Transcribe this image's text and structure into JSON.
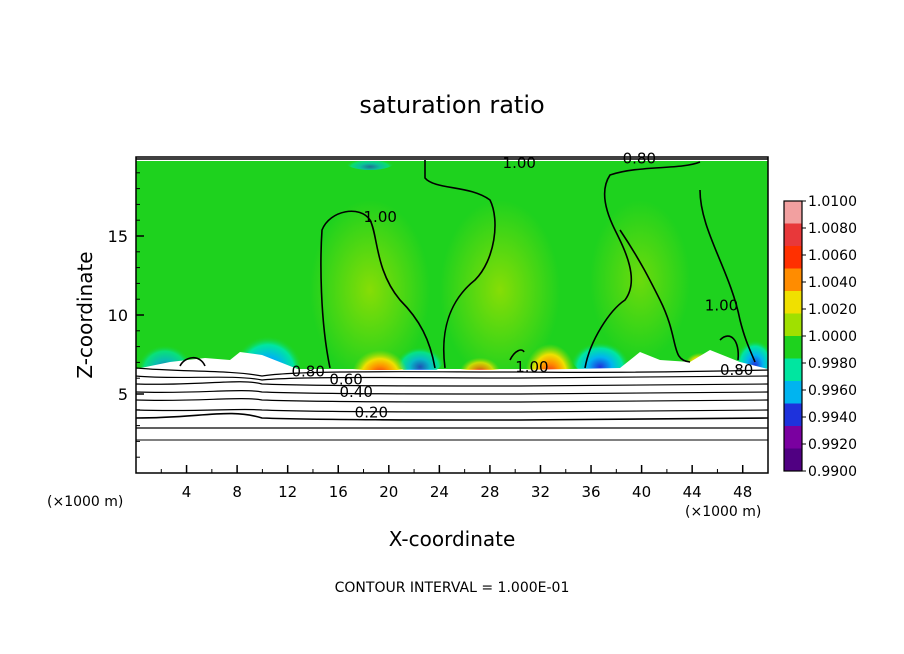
{
  "chart_data": {
    "type": "heatmap",
    "title": "saturation ratio",
    "xlabel": "X-coordinate",
    "ylabel": "Z-coordinate",
    "x_unit_label": "(×1000 m)",
    "xlim": [
      0,
      50
    ],
    "ylim": [
      0,
      20
    ],
    "x_ticks": [
      4,
      8,
      12,
      16,
      20,
      24,
      28,
      32,
      36,
      40,
      44,
      48
    ],
    "y_ticks": [
      5,
      10,
      15
    ],
    "footer": "CONTOUR INTERVAL = 1.000E-01",
    "colorbar": {
      "levels": [
        "1.0100",
        "1.0080",
        "1.0060",
        "1.0040",
        "1.0020",
        "1.0000",
        "0.9980",
        "0.9960",
        "0.9940",
        "0.9920",
        "0.9900"
      ],
      "colors": [
        "#f2a0a0",
        "#e8383a",
        "#ff3000",
        "#ff8c00",
        "#f0e000",
        "#a0e000",
        "#1ed21e",
        "#00e6a0",
        "#00b4f0",
        "#1e32dc",
        "#7a00a0",
        "#500082"
      ]
    },
    "contour_labels": [
      {
        "text": "1.00",
        "x": 18.0,
        "y": 15.9
      },
      {
        "text": "1.00",
        "x": 29.0,
        "y": 19.3
      },
      {
        "text": "0.80",
        "x": 38.5,
        "y": 19.6
      },
      {
        "text": "1.00",
        "x": 45.0,
        "y": 10.3
      },
      {
        "text": "1.00",
        "x": 30.0,
        "y": 6.4
      },
      {
        "text": "0.80",
        "x": 12.3,
        "y": 6.1
      },
      {
        "text": "0.60",
        "x": 15.3,
        "y": 5.6
      },
      {
        "text": "0.40",
        "x": 16.1,
        "y": 4.8
      },
      {
        "text": "0.20",
        "x": 17.3,
        "y": 3.5
      },
      {
        "text": "0.80",
        "x": 46.2,
        "y": 6.2
      }
    ]
  }
}
